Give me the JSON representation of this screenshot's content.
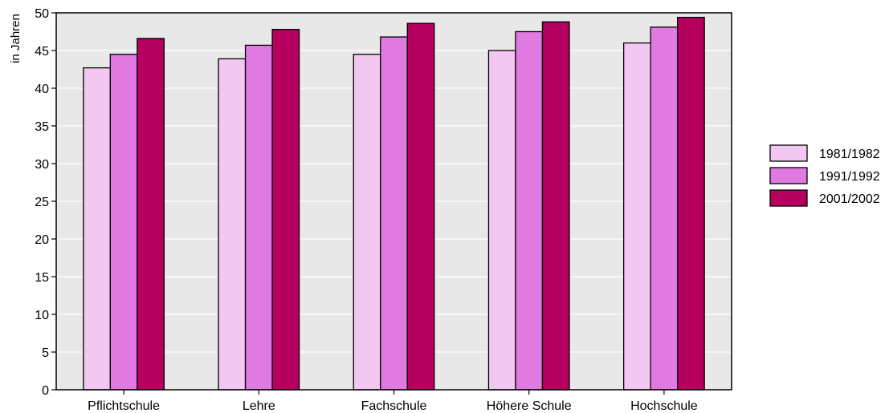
{
  "chart_data": {
    "type": "bar",
    "title": "",
    "xlabel": "",
    "ylabel": "in Jahren",
    "ylim": [
      0,
      50
    ],
    "yticks": [
      "0",
      "5",
      "10",
      "15",
      "20",
      "25",
      "30",
      "35",
      "40",
      "45",
      "50"
    ],
    "grid": true,
    "legend_position": "right",
    "categories": [
      "Pflichtschule",
      "Lehre",
      "Fachschule",
      "Höhere Schule",
      "Hochschule"
    ],
    "series": [
      {
        "name": "1981/1982",
        "color": "#f2c8f2",
        "values": [
          42.7,
          43.9,
          44.5,
          45.0,
          46.0
        ]
      },
      {
        "name": "1991/1992",
        "color": "#e07ae0",
        "values": [
          44.5,
          45.7,
          46.8,
          47.5,
          48.1
        ]
      },
      {
        "name": "2001/2002",
        "color": "#b5005f",
        "values": [
          46.6,
          47.8,
          48.6,
          48.8,
          49.4
        ]
      }
    ],
    "plot_background": "#e8e8e8",
    "grid_color": "#ffffff"
  }
}
